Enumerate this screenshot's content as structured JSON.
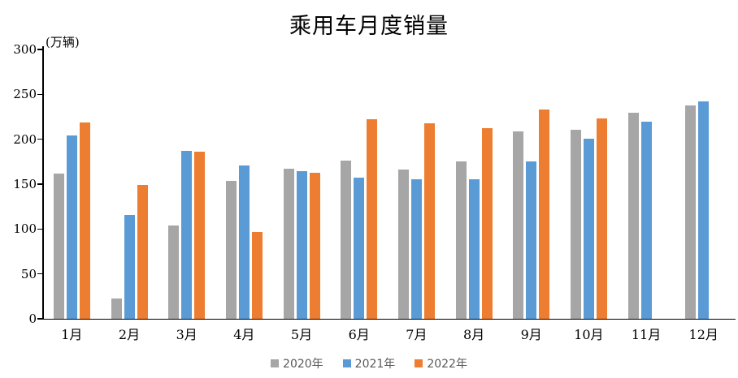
{
  "chart_data": {
    "type": "bar",
    "title": "乘用车月度销量",
    "ylabel": "(万辆)",
    "xlabel": "",
    "categories": [
      "1月",
      "2月",
      "3月",
      "4月",
      "5月",
      "6月",
      "7月",
      "8月",
      "9月",
      "10月",
      "11月",
      "12月"
    ],
    "series": [
      {
        "name": "2020年",
        "color": "#A6A6A6",
        "values": [
          161.4,
          22.4,
          104.3,
          153.6,
          167.4,
          176.4,
          166.5,
          175.5,
          208.8,
          211.0,
          229.7,
          237.5
        ]
      },
      {
        "name": "2021年",
        "color": "#5B9BD5",
        "values": [
          204.5,
          115.6,
          187.4,
          170.4,
          164.6,
          156.9,
          155.1,
          155.2,
          175.1,
          200.4,
          219.2,
          242.2
        ]
      },
      {
        "name": "2022年",
        "color": "#ED7D31",
        "values": [
          218.6,
          148.7,
          186.4,
          96.5,
          162.3,
          222.2,
          217.4,
          212.5,
          233.2,
          223.1,
          null,
          null
        ]
      }
    ],
    "ylim": [
      0,
      300
    ],
    "ytick_interval": 50,
    "grid": false,
    "legend_position": "bottom",
    "axis_color": "#000000",
    "legend_text_color": "#595959"
  }
}
